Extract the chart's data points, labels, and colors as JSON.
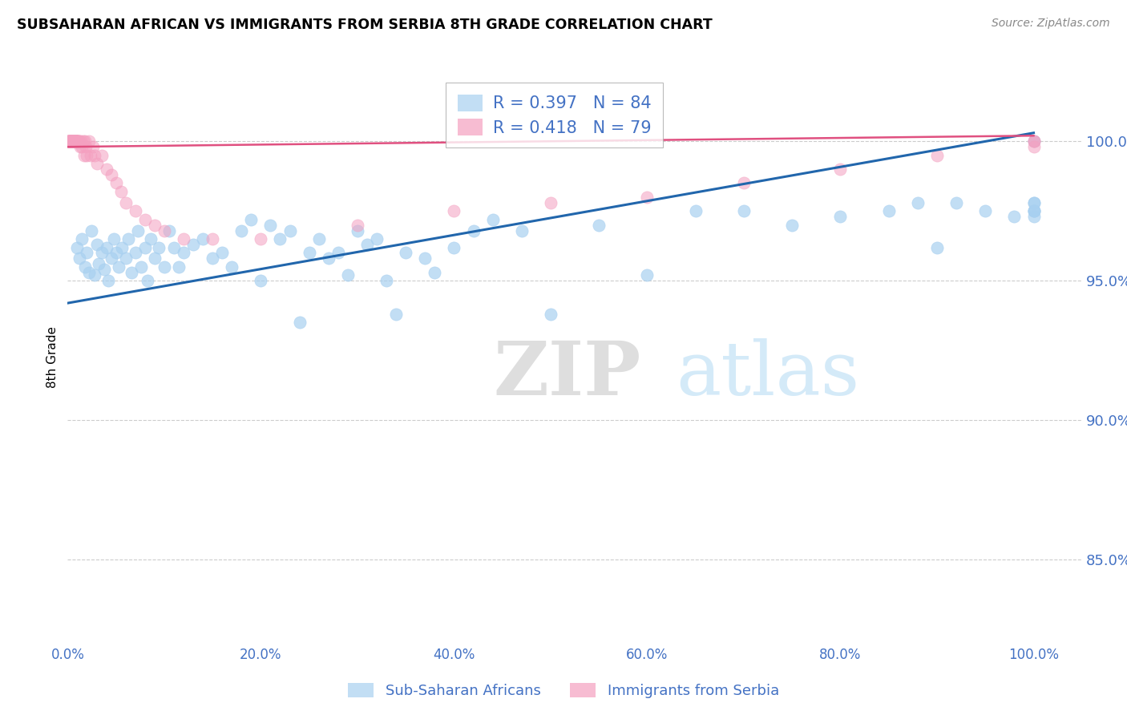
{
  "title": "SUBSAHARAN AFRICAN VS IMMIGRANTS FROM SERBIA 8TH GRADE CORRELATION CHART",
  "source": "Source: ZipAtlas.com",
  "ylabel": "8th Grade",
  "ytick_labels": [
    "85.0%",
    "90.0%",
    "95.0%",
    "100.0%"
  ],
  "ytick_values": [
    85.0,
    90.0,
    95.0,
    100.0
  ],
  "xtick_labels": [
    "0.0%",
    "20.0%",
    "40.0%",
    "60.0%",
    "80.0%",
    "100.0%"
  ],
  "xtick_values": [
    0,
    20,
    40,
    60,
    80,
    100
  ],
  "xlim": [
    0.0,
    105.0
  ],
  "ylim": [
    82.0,
    102.5
  ],
  "legend_blue_r": "R = 0.397",
  "legend_blue_n": "N = 84",
  "legend_pink_r": "R = 0.418",
  "legend_pink_n": "N = 79",
  "blue_color": "#a8d0f0",
  "pink_color": "#f4a0c0",
  "trend_blue_color": "#2166ac",
  "trend_pink_color": "#e05080",
  "bg_color": "#ffffff",
  "grid_color": "#cccccc",
  "tick_color": "#4472c4",
  "watermark_text": "ZIPatlas",
  "watermark_color": "#d0e8f8",
  "blue_trend_y0": 94.2,
  "blue_trend_y1": 100.3,
  "pink_trend_y0": 99.8,
  "pink_trend_y1": 100.2,
  "blue_scatter_x": [
    1.0,
    1.2,
    1.5,
    1.8,
    2.0,
    2.2,
    2.5,
    2.8,
    3.0,
    3.2,
    3.5,
    3.8,
    4.0,
    4.2,
    4.5,
    4.8,
    5.0,
    5.3,
    5.6,
    6.0,
    6.3,
    6.6,
    7.0,
    7.3,
    7.6,
    8.0,
    8.3,
    8.6,
    9.0,
    9.4,
    10.0,
    10.5,
    11.0,
    11.5,
    12.0,
    13.0,
    14.0,
    15.0,
    16.0,
    17.0,
    18.0,
    19.0,
    20.0,
    21.0,
    22.0,
    23.0,
    24.0,
    25.0,
    26.0,
    27.0,
    28.0,
    29.0,
    30.0,
    31.0,
    32.0,
    33.0,
    34.0,
    35.0,
    37.0,
    38.0,
    40.0,
    42.0,
    44.0,
    47.0,
    50.0,
    55.0,
    60.0,
    65.0,
    70.0,
    75.0,
    80.0,
    85.0,
    88.0,
    90.0,
    92.0,
    95.0,
    98.0,
    100.0,
    100.0,
    100.0,
    100.0,
    100.0,
    100.0,
    100.0
  ],
  "blue_scatter_y": [
    96.2,
    95.8,
    96.5,
    95.5,
    96.0,
    95.3,
    96.8,
    95.2,
    96.3,
    95.6,
    96.0,
    95.4,
    96.2,
    95.0,
    95.8,
    96.5,
    96.0,
    95.5,
    96.2,
    95.8,
    96.5,
    95.3,
    96.0,
    96.8,
    95.5,
    96.2,
    95.0,
    96.5,
    95.8,
    96.2,
    95.5,
    96.8,
    96.2,
    95.5,
    96.0,
    96.3,
    96.5,
    95.8,
    96.0,
    95.5,
    96.8,
    97.2,
    95.0,
    97.0,
    96.5,
    96.8,
    93.5,
    96.0,
    96.5,
    95.8,
    96.0,
    95.2,
    96.8,
    96.3,
    96.5,
    95.0,
    93.8,
    96.0,
    95.8,
    95.3,
    96.2,
    96.8,
    97.2,
    96.8,
    93.8,
    97.0,
    95.2,
    97.5,
    97.5,
    97.0,
    97.3,
    97.5,
    97.8,
    96.2,
    97.8,
    97.5,
    97.3,
    97.5,
    97.8,
    97.5,
    97.3,
    97.8,
    97.5,
    100.0
  ],
  "pink_scatter_x": [
    0.05,
    0.08,
    0.1,
    0.12,
    0.15,
    0.18,
    0.2,
    0.22,
    0.25,
    0.28,
    0.3,
    0.32,
    0.35,
    0.38,
    0.4,
    0.42,
    0.45,
    0.48,
    0.5,
    0.52,
    0.55,
    0.58,
    0.6,
    0.62,
    0.65,
    0.68,
    0.7,
    0.72,
    0.75,
    0.78,
    0.8,
    0.82,
    0.85,
    0.88,
    0.9,
    0.92,
    0.95,
    0.98,
    1.0,
    1.05,
    1.1,
    1.15,
    1.2,
    1.3,
    1.4,
    1.5,
    1.6,
    1.7,
    1.8,
    1.9,
    2.0,
    2.2,
    2.4,
    2.6,
    2.8,
    3.0,
    3.5,
    4.0,
    4.5,
    5.0,
    5.5,
    6.0,
    7.0,
    8.0,
    9.0,
    10.0,
    12.0,
    15.0,
    20.0,
    30.0,
    40.0,
    50.0,
    60.0,
    70.0,
    80.0,
    90.0,
    100.0,
    100.0,
    100.0
  ],
  "pink_scatter_y": [
    100.0,
    100.0,
    100.0,
    100.0,
    100.0,
    100.0,
    100.0,
    100.0,
    100.0,
    100.0,
    100.0,
    100.0,
    100.0,
    100.0,
    100.0,
    100.0,
    100.0,
    100.0,
    100.0,
    100.0,
    100.0,
    100.0,
    100.0,
    100.0,
    100.0,
    100.0,
    100.0,
    100.0,
    100.0,
    100.0,
    100.0,
    100.0,
    100.0,
    100.0,
    100.0,
    100.0,
    100.0,
    100.0,
    100.0,
    100.0,
    100.0,
    100.0,
    100.0,
    99.8,
    100.0,
    99.8,
    100.0,
    99.5,
    100.0,
    99.8,
    99.5,
    100.0,
    99.5,
    99.8,
    99.5,
    99.2,
    99.5,
    99.0,
    98.8,
    98.5,
    98.2,
    97.8,
    97.5,
    97.2,
    97.0,
    96.8,
    96.5,
    96.5,
    96.5,
    97.0,
    97.5,
    97.8,
    98.0,
    98.5,
    99.0,
    99.5,
    99.8,
    100.0,
    100.0
  ]
}
